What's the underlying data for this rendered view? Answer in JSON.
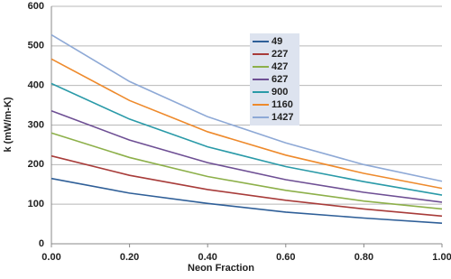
{
  "chart_data": {
    "type": "line",
    "x_label": "Neon Fraction",
    "y_label": "k (mW/m-K)",
    "x": [
      0,
      0.2,
      0.4,
      0.6,
      0.8,
      1.0
    ],
    "xlim": [
      0,
      1
    ],
    "xticks": [
      {
        "value": 0,
        "label": "0.00"
      },
      {
        "value": 0.2,
        "label": "0.20"
      },
      {
        "value": 0.4,
        "label": "0.40"
      },
      {
        "value": 0.6,
        "label": "0.60"
      },
      {
        "value": 0.8,
        "label": "0.80"
      },
      {
        "value": 1,
        "label": "1.00"
      }
    ],
    "ylim": [
      0,
      600
    ],
    "yticks": [
      0,
      100,
      200,
      300,
      400,
      500,
      600
    ],
    "grid": true,
    "legend": "top",
    "series": [
      {
        "name": "49",
        "color": "#2f5f98",
        "values": [
          165,
          128,
          102,
          80,
          65,
          52
        ]
      },
      {
        "name": "227",
        "color": "#a83c3a",
        "values": [
          222,
          173,
          137,
          110,
          88,
          70
        ]
      },
      {
        "name": "427",
        "color": "#8db04a",
        "values": [
          280,
          218,
          170,
          135,
          108,
          88
        ]
      },
      {
        "name": "627",
        "color": "#6e4f94",
        "values": [
          336,
          262,
          205,
          162,
          130,
          105
        ]
      },
      {
        "name": "900",
        "color": "#2a9aa8",
        "values": [
          405,
          315,
          245,
          195,
          157,
          123
        ]
      },
      {
        "name": "1160",
        "color": "#ee8a2c",
        "values": [
          467,
          362,
          283,
          224,
          178,
          140
        ]
      },
      {
        "name": "1427",
        "color": "#8ea9d6",
        "values": [
          528,
          410,
          321,
          255,
          200,
          158
        ]
      }
    ]
  }
}
